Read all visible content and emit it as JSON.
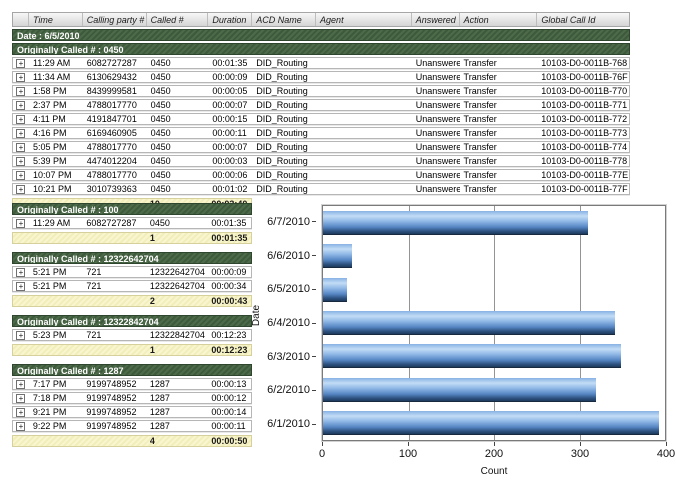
{
  "colors": {
    "group_header_green": "#3e5a3c",
    "summary_yellow": "#f6f3c4",
    "bar_blue": "#5b8fc9",
    "header_gray": "#d5d5d5"
  },
  "table": {
    "expand_symbol": "+",
    "columns": [
      {
        "key": "expand",
        "label": ""
      },
      {
        "key": "time",
        "label": "Time"
      },
      {
        "key": "calling",
        "label": "Calling party #"
      },
      {
        "key": "called",
        "label": "Called #"
      },
      {
        "key": "duration",
        "label": "Duration"
      },
      {
        "key": "acd",
        "label": "ACD Name"
      },
      {
        "key": "agent",
        "label": "Agent"
      },
      {
        "key": "answered",
        "label": "Answered"
      },
      {
        "key": "action",
        "label": "Action"
      },
      {
        "key": "global",
        "label": "Global Call Id"
      }
    ],
    "date_header": "Date : 6/5/2010",
    "groups": [
      {
        "header": "Originally Called # : 0450",
        "rows": [
          [
            "11:29 AM",
            "6082727287",
            "0450",
            "00:01:35",
            "DID_Routing",
            "",
            "Unanswered",
            "Transfer",
            "10103-D0-0011B-768"
          ],
          [
            "11:34 AM",
            "6130629432",
            "0450",
            "00:00:09",
            "DID_Routing",
            "",
            "Unanswered",
            "Transfer",
            "10103-D0-0011B-76F"
          ],
          [
            "1:58 PM",
            "8439999581",
            "0450",
            "00:00:05",
            "DID_Routing",
            "",
            "Unanswered",
            "Transfer",
            "10103-D0-0011B-770"
          ],
          [
            "2:37 PM",
            "4788017770",
            "0450",
            "00:00:07",
            "DID_Routing",
            "",
            "Unanswered",
            "Transfer",
            "10103-D0-0011B-771"
          ],
          [
            "4:11 PM",
            "4191847701",
            "0450",
            "00:00:15",
            "DID_Routing",
            "",
            "Unanswered",
            "Transfer",
            "10103-D0-0011B-772"
          ],
          [
            "4:16 PM",
            "6169460905",
            "0450",
            "00:00:11",
            "DID_Routing",
            "",
            "Unanswered",
            "Transfer",
            "10103-D0-0011B-773"
          ],
          [
            "5:05 PM",
            "4788017770",
            "0450",
            "00:00:07",
            "DID_Routing",
            "",
            "Unanswered",
            "Transfer",
            "10103-D0-0011B-774"
          ],
          [
            "5:39 PM",
            "4474012204",
            "0450",
            "00:00:03",
            "DID_Routing",
            "",
            "Unanswered",
            "Transfer",
            "10103-D0-0011B-778"
          ],
          [
            "10:07 PM",
            "4788017770",
            "0450",
            "00:00:06",
            "DID_Routing",
            "",
            "Unanswered",
            "Transfer",
            "10103-D0-0011B-77E"
          ],
          [
            "10:21 PM",
            "3010739363",
            "0450",
            "00:01:02",
            "DID_Routing",
            "",
            "Unanswered",
            "Transfer",
            "10103-D0-0011B-77F"
          ]
        ],
        "summary": {
          "count": "10",
          "total": "00:03:40"
        }
      },
      {
        "header": "Originally Called # : 100",
        "rows": [
          [
            "11:29 AM",
            "6082727287",
            "0450",
            "00:01:35"
          ]
        ],
        "summary": {
          "count": "1",
          "total": "00:01:35"
        }
      },
      {
        "header": "Originally Called # : 12322642704",
        "rows": [
          [
            "5:21 PM",
            "721",
            "12322642704",
            "00:00:09"
          ],
          [
            "5:21 PM",
            "721",
            "12322642704",
            "00:00:34"
          ]
        ],
        "summary": {
          "count": "2",
          "total": "00:00:43"
        }
      },
      {
        "header": "Originally Called # : 12322842704",
        "rows": [
          [
            "5:23 PM",
            "721",
            "12322842704",
            "00:12:23"
          ]
        ],
        "summary": {
          "count": "1",
          "total": "00:12:23"
        }
      },
      {
        "header": "Originally Called # : 1287",
        "rows": [
          [
            "7:17 PM",
            "9199748952",
            "1287",
            "00:00:13"
          ],
          [
            "7:18 PM",
            "9199748952",
            "1287",
            "00:00:12"
          ],
          [
            "9:21 PM",
            "9199748952",
            "1287",
            "00:00:14"
          ],
          [
            "9:22 PM",
            "9199748952",
            "1287",
            "00:00:11"
          ]
        ],
        "summary": {
          "count": "4",
          "total": "00:00:50"
        }
      }
    ]
  },
  "chart_data": {
    "type": "bar",
    "orientation": "horizontal",
    "categories": [
      "6/7/2010",
      "6/6/2010",
      "6/5/2010",
      "6/4/2010",
      "6/3/2010",
      "6/2/2010",
      "6/1/2010"
    ],
    "values": [
      310,
      34,
      28,
      342,
      349,
      319,
      393
    ],
    "title": "",
    "xlabel": "Count",
    "ylabel": "Date",
    "xlim": [
      0,
      400
    ],
    "xticks": [
      0,
      100,
      200,
      300,
      400
    ],
    "grid": true,
    "legend": "none",
    "bar_color": "#5b8fc9"
  }
}
